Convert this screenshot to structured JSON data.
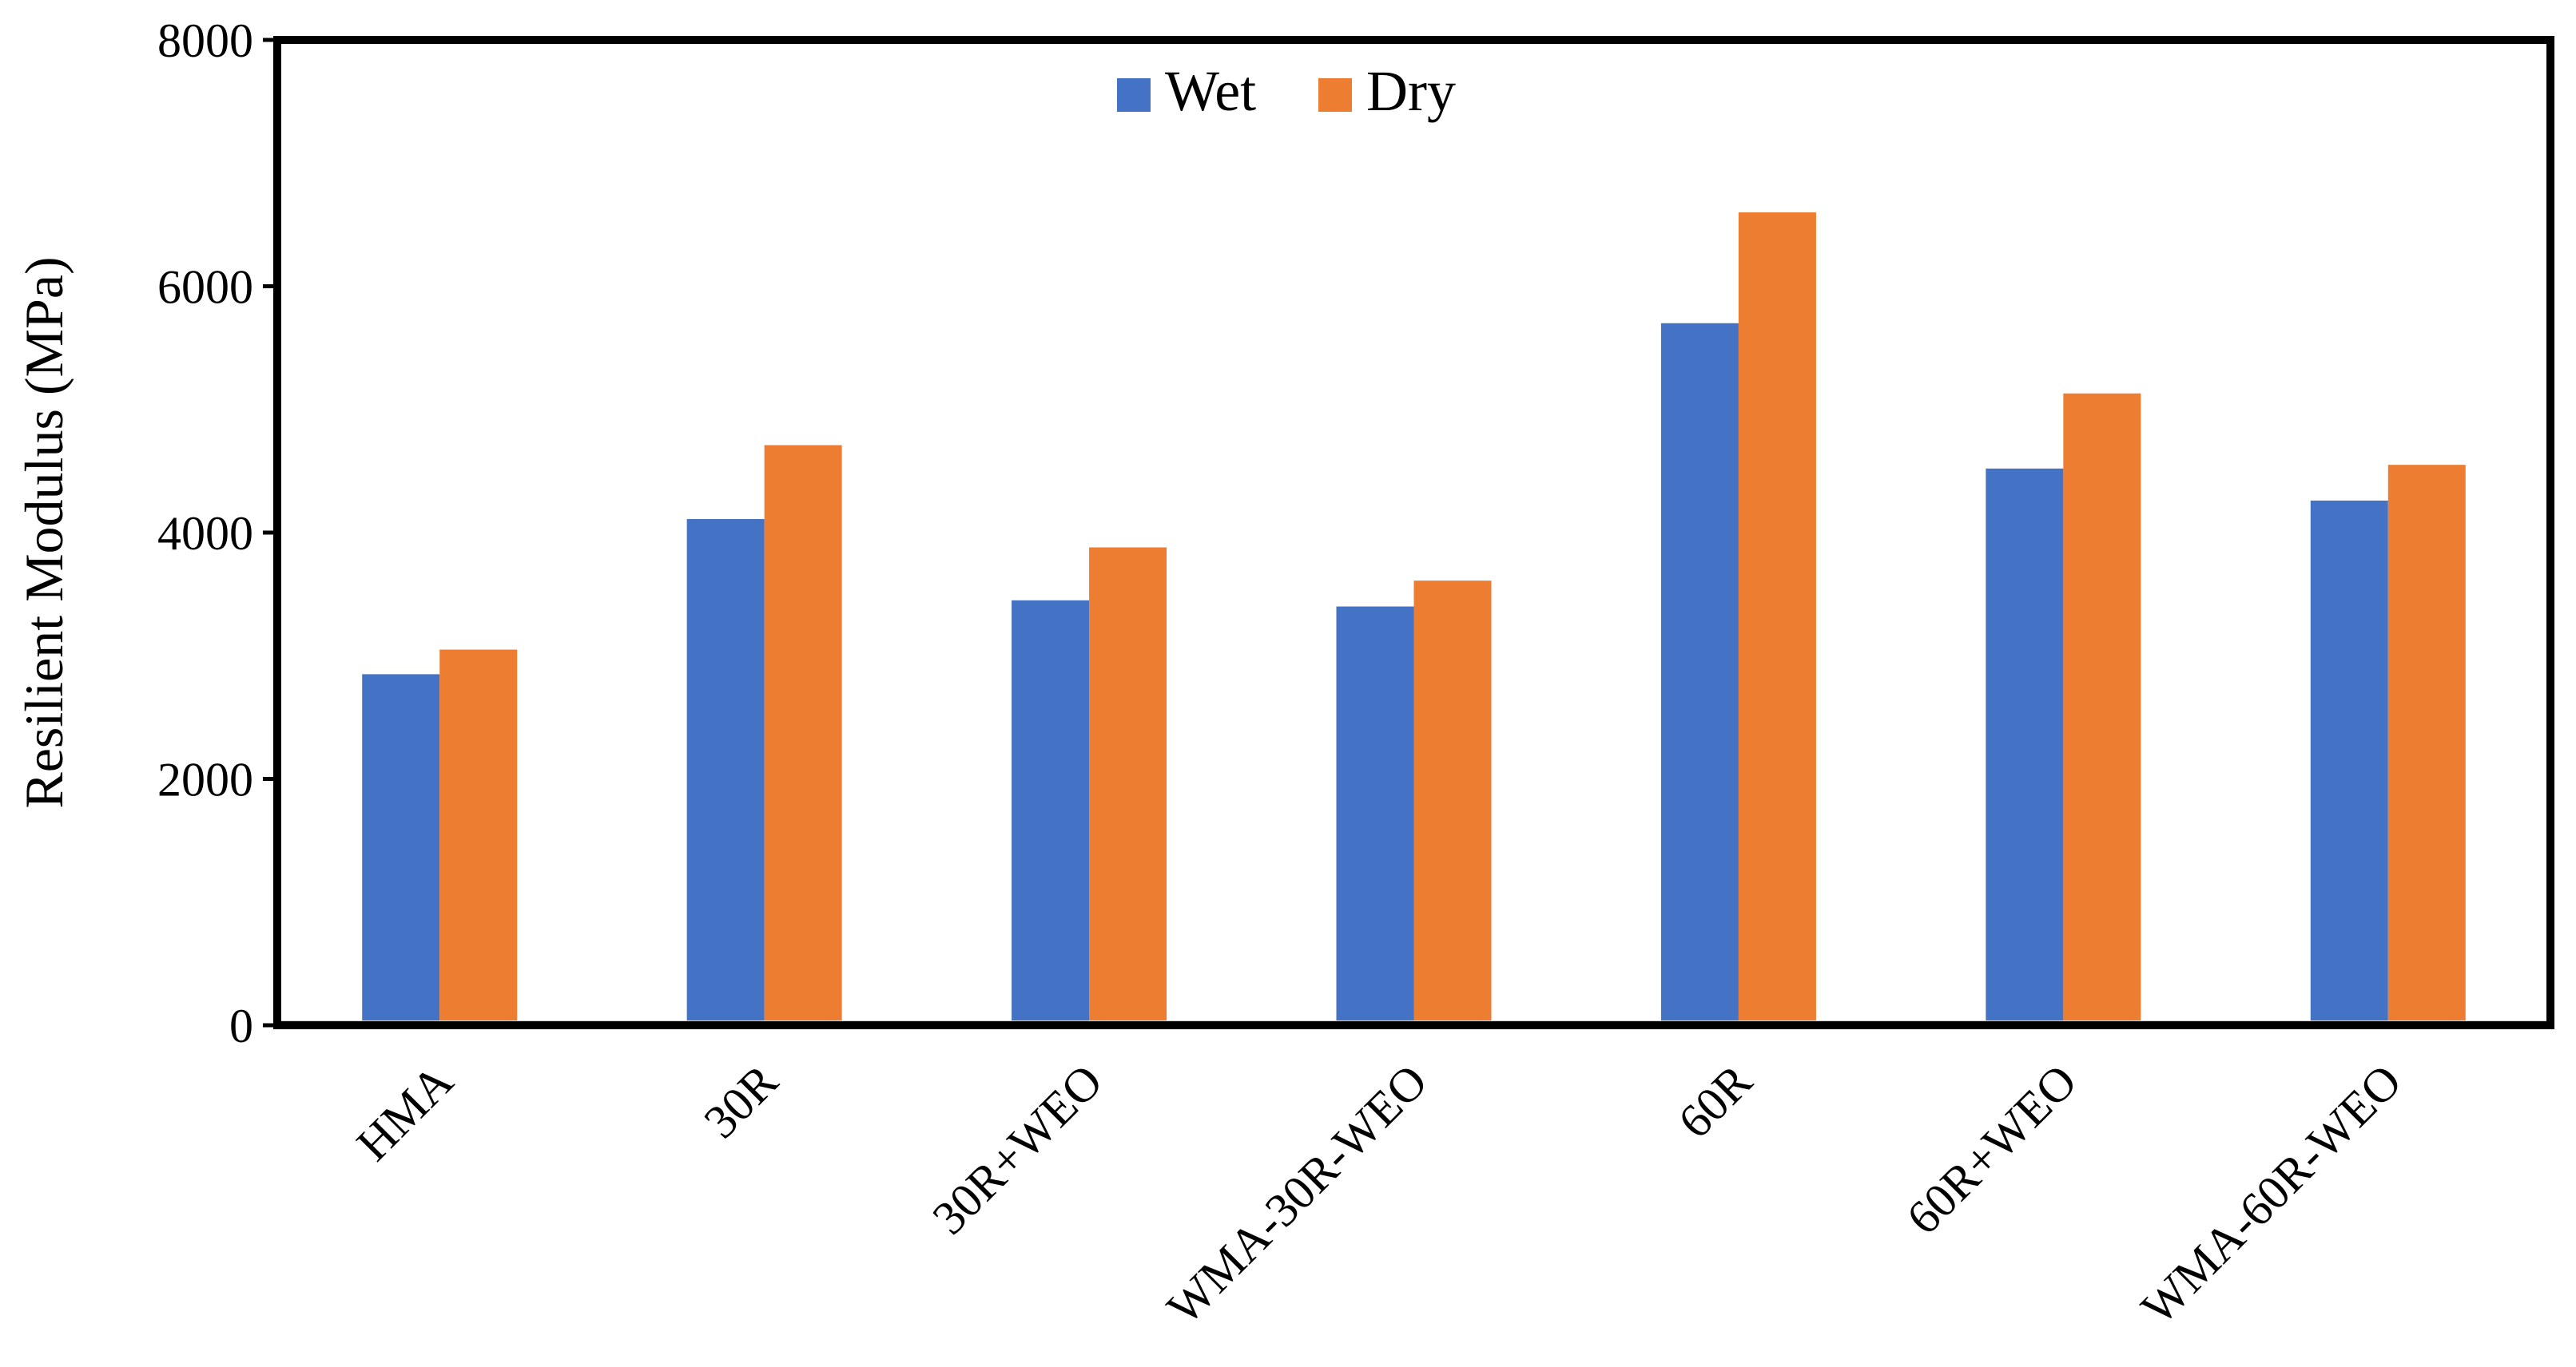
{
  "chart_data": {
    "type": "bar",
    "title": "",
    "xlabel": "",
    "ylabel": "Resilient Modulus (MPa)",
    "ylim": [
      0,
      8000
    ],
    "yticks": [
      0,
      2000,
      4000,
      6000,
      8000
    ],
    "ytick_labels": [
      "0",
      "2000",
      "4000",
      "6000",
      "8000"
    ],
    "grid": false,
    "legend_position": "top-center",
    "categories": [
      "HMA",
      "30R",
      "30R+WEO",
      "WMA-30R-WEO",
      "60R",
      "60R+WEO",
      "WMA-60R-WEO"
    ],
    "series": [
      {
        "name": "Wet",
        "color": "#4472C4",
        "values": [
          2850,
          4110,
          3450,
          3400,
          5700,
          4520,
          4260
        ]
      },
      {
        "name": "Dry",
        "color": "#ED7D31",
        "values": [
          3050,
          4710,
          3880,
          3610,
          6600,
          5130,
          4550
        ]
      }
    ]
  }
}
